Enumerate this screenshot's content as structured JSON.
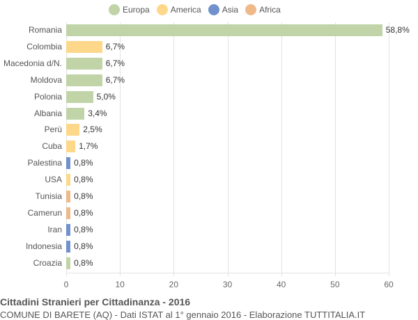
{
  "chart_data": {
    "type": "bar",
    "orientation": "horizontal",
    "title": "Cittadini Stranieri per Cittadinanza - 2016",
    "subtitle": "COMUNE DI BARETE (AQ) - Dati ISTAT al 1° gennaio 2016 - Elaborazione TUTTITALIA.IT",
    "xlabel": "",
    "ylabel": "",
    "xlim": [
      0,
      60
    ],
    "x_ticks": [
      "0",
      "10",
      "20",
      "30",
      "40",
      "50",
      "60"
    ],
    "grid": true,
    "legend_position": "top",
    "legend": [
      {
        "name": "Europa",
        "color": "#c0d4a8"
      },
      {
        "name": "America",
        "color": "#fdd78a"
      },
      {
        "name": "Asia",
        "color": "#7191cc"
      },
      {
        "name": "Africa",
        "color": "#efb98a"
      }
    ],
    "categories": [
      "Romania",
      "Colombia",
      "Macedonia d/N.",
      "Moldova",
      "Polonia",
      "Albania",
      "Perù",
      "Cuba",
      "Palestina",
      "USA",
      "Tunisia",
      "Camerun",
      "Iran",
      "Indonesia",
      "Croazia"
    ],
    "values": [
      58.8,
      6.7,
      6.7,
      6.7,
      5.0,
      3.4,
      2.5,
      1.7,
      0.8,
      0.8,
      0.8,
      0.8,
      0.8,
      0.8,
      0.8
    ],
    "value_labels": [
      "58,8%",
      "6,7%",
      "6,7%",
      "6,7%",
      "5,0%",
      "3,4%",
      "2,5%",
      "1,7%",
      "0,8%",
      "0,8%",
      "0,8%",
      "0,8%",
      "0,8%",
      "0,8%",
      "0,8%"
    ],
    "groups": [
      "Europa",
      "America",
      "Europa",
      "Europa",
      "Europa",
      "Europa",
      "America",
      "America",
      "Asia",
      "America",
      "Africa",
      "Africa",
      "Asia",
      "Asia",
      "Europa"
    ]
  }
}
